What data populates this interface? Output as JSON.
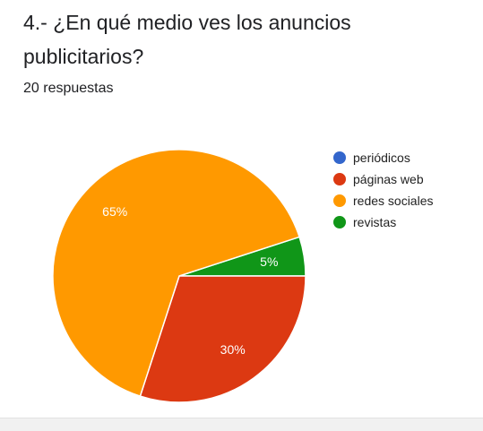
{
  "question": {
    "title": "4.- ¿En qué medio ves los anuncios publicitarios?",
    "responses": "20 respuestas"
  },
  "chart_data": {
    "type": "pie",
    "categories": [
      "periódicos",
      "páginas web",
      "redes sociales",
      "revistas"
    ],
    "values": [
      0,
      30,
      65,
      5
    ],
    "labels": [
      "",
      "30%",
      "65%",
      "5%"
    ],
    "colors": [
      "#3366cc",
      "#dc3912",
      "#ff9900",
      "#109618"
    ],
    "legend": "right"
  }
}
